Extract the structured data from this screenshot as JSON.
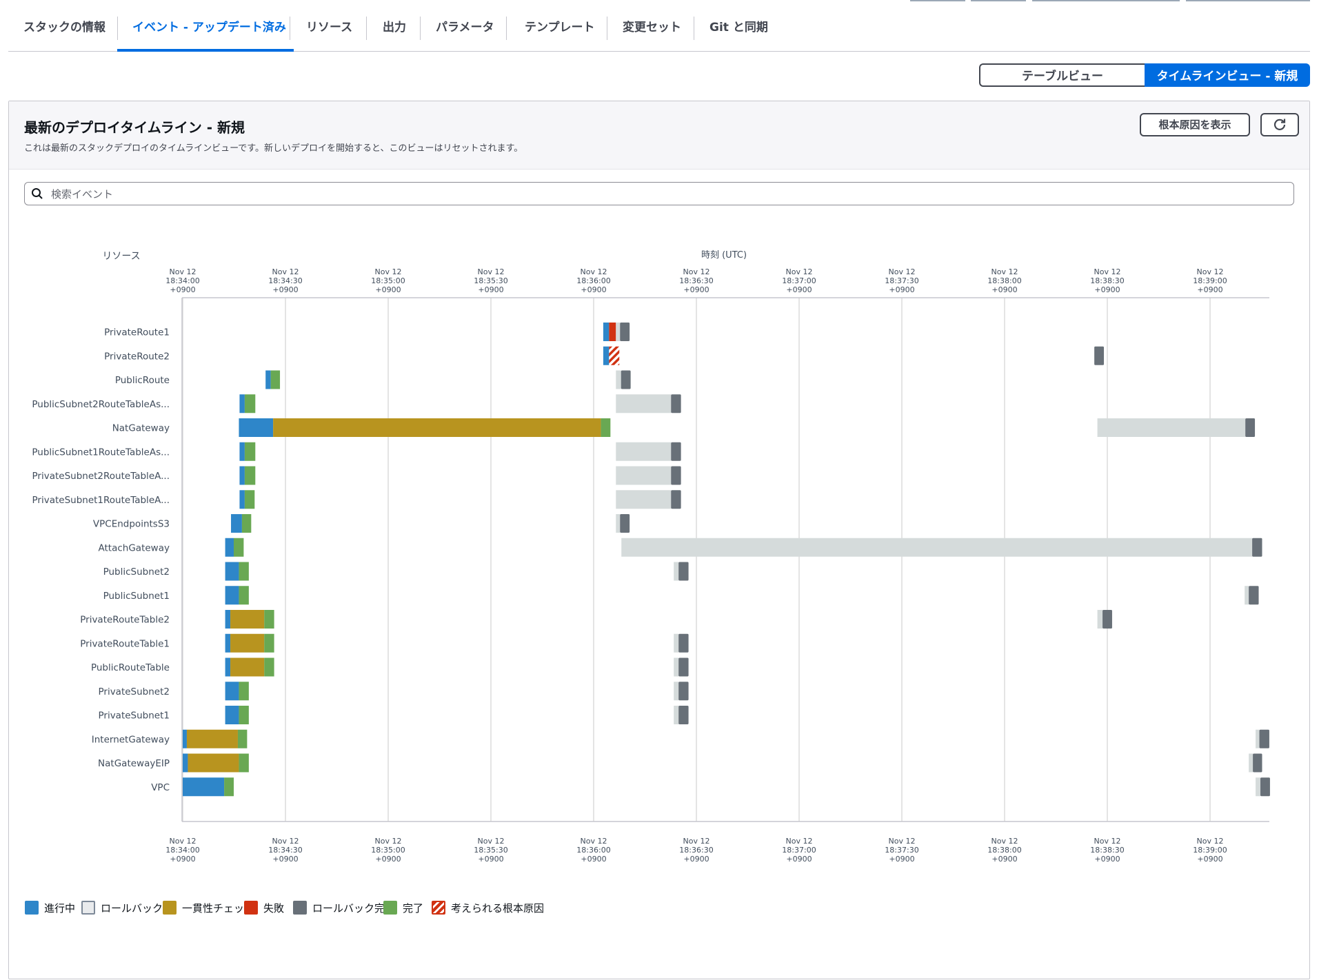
{
  "tabs": [
    {
      "label": "スタックの情報",
      "active": false
    },
    {
      "label": "イベント - アップデート済み",
      "active": true
    },
    {
      "label": "リソース",
      "active": false
    },
    {
      "label": "出力",
      "active": false
    },
    {
      "label": "パラメータ",
      "active": false
    },
    {
      "label": "テンプレート",
      "active": false
    },
    {
      "label": "変更セット",
      "active": false
    },
    {
      "label": "Git と同期",
      "active": false
    }
  ],
  "view_toggle": {
    "table": "テーブルビュー",
    "timeline": "タイムラインビュー - 新規",
    "selected": "timeline"
  },
  "panel": {
    "title": "最新のデプロイタイムライン - 新規",
    "description": "これは最新のスタックデプロイのタイムラインビューです。新しいデプロイを開始すると、このビューはリセットされます。",
    "root_cause_button": "根本原因を表示",
    "refresh_icon": "refresh-icon"
  },
  "search": {
    "placeholder": "検索イベント",
    "value": "",
    "icon": "search-icon"
  },
  "chart_data": {
    "type": "timeline",
    "y_axis_title": "リソース",
    "x_axis_title": "時刻 (UTC)",
    "x_ticks": [
      {
        "date": "Nov 12",
        "time": "18:34:00",
        "tz": "+0900",
        "sec": 0
      },
      {
        "date": "Nov 12",
        "time": "18:34:30",
        "tz": "+0900",
        "sec": 30
      },
      {
        "date": "Nov 12",
        "time": "18:35:00",
        "tz": "+0900",
        "sec": 60
      },
      {
        "date": "Nov 12",
        "time": "18:35:30",
        "tz": "+0900",
        "sec": 90
      },
      {
        "date": "Nov 12",
        "time": "18:36:00",
        "tz": "+0900",
        "sec": 120
      },
      {
        "date": "Nov 12",
        "time": "18:36:30",
        "tz": "+0900",
        "sec": 150
      },
      {
        "date": "Nov 12",
        "time": "18:37:00",
        "tz": "+0900",
        "sec": 180
      },
      {
        "date": "Nov 12",
        "time": "18:37:30",
        "tz": "+0900",
        "sec": 210
      },
      {
        "date": "Nov 12",
        "time": "18:38:00",
        "tz": "+0900",
        "sec": 240
      },
      {
        "date": "Nov 12",
        "time": "18:38:30",
        "tz": "+0900",
        "sec": 270
      },
      {
        "date": "Nov 12",
        "time": "18:39:00",
        "tz": "+0900",
        "sec": 300
      }
    ],
    "x_range_seconds": [
      0,
      317
    ],
    "legend": [
      {
        "key": "in_progress",
        "label": "進行中",
        "color": "#2e86c9"
      },
      {
        "key": "rollback",
        "label": "ロールバック",
        "color": "#d5dbdb"
      },
      {
        "key": "consistency",
        "label": "一貫性チェック",
        "color": "#b8941f"
      },
      {
        "key": "failed",
        "label": "失敗",
        "color": "#d13212"
      },
      {
        "key": "rollback_complete",
        "label": "ロールバック完了",
        "color": "#687078"
      },
      {
        "key": "complete",
        "label": "完了",
        "color": "#69a853"
      },
      {
        "key": "root_cause",
        "label": "考えられる根本原因",
        "color": "#d13212"
      }
    ],
    "resources": [
      {
        "name": "PrivateRoute1",
        "segments": [
          {
            "status": "in_progress",
            "start": 122.8,
            "end": 124.5
          },
          {
            "status": "failed",
            "start": 124.5,
            "end": 126.5
          },
          {
            "status": "rollback",
            "start": 126.5,
            "end": 127.7
          },
          {
            "status": "rollback_complete",
            "start": 127.7,
            "end": 130.5
          }
        ]
      },
      {
        "name": "PrivateRoute2",
        "segments": [
          {
            "status": "in_progress",
            "start": 122.8,
            "end": 124.5
          },
          {
            "status": "root_cause",
            "start": 124.5,
            "end": 127.5
          },
          {
            "status": "rollback_complete",
            "start": 266.2,
            "end": 269
          }
        ]
      },
      {
        "name": "PublicRoute",
        "segments": [
          {
            "status": "in_progress",
            "start": 24.2,
            "end": 25.7
          },
          {
            "status": "complete",
            "start": 25.7,
            "end": 28.4
          },
          {
            "status": "rollback",
            "start": 126.5,
            "end": 128
          },
          {
            "status": "rollback_complete",
            "start": 128,
            "end": 130.8
          }
        ]
      },
      {
        "name": "PublicSubnet2RouteTableAs...",
        "segments": [
          {
            "status": "in_progress",
            "start": 16.6,
            "end": 18.1
          },
          {
            "status": "complete",
            "start": 18.1,
            "end": 21.2
          },
          {
            "status": "rollback",
            "start": 126.5,
            "end": 142.6
          },
          {
            "status": "rollback_complete",
            "start": 142.6,
            "end": 145.5
          }
        ]
      },
      {
        "name": "NatGateway",
        "segments": [
          {
            "status": "in_progress",
            "start": 16.4,
            "end": 26.4
          },
          {
            "status": "consistency",
            "start": 26.4,
            "end": 122.1
          },
          {
            "status": "complete",
            "start": 122.1,
            "end": 124.9
          },
          {
            "status": "rollback",
            "start": 267.1,
            "end": 310.3
          },
          {
            "status": "rollback_complete",
            "start": 310.3,
            "end": 313.1
          }
        ]
      },
      {
        "name": "PublicSubnet1RouteTableAs...",
        "segments": [
          {
            "status": "in_progress",
            "start": 16.6,
            "end": 18.1
          },
          {
            "status": "complete",
            "start": 18.1,
            "end": 21.2
          },
          {
            "status": "rollback",
            "start": 126.5,
            "end": 142.6
          },
          {
            "status": "rollback_complete",
            "start": 142.6,
            "end": 145.5
          }
        ]
      },
      {
        "name": "PrivateSubnet2RouteTableA...",
        "segments": [
          {
            "status": "in_progress",
            "start": 16.6,
            "end": 18.1
          },
          {
            "status": "complete",
            "start": 18.1,
            "end": 21.2
          },
          {
            "status": "rollback",
            "start": 126.5,
            "end": 142.6
          },
          {
            "status": "rollback_complete",
            "start": 142.6,
            "end": 145.5
          }
        ]
      },
      {
        "name": "PrivateSubnet1RouteTableA...",
        "segments": [
          {
            "status": "in_progress",
            "start": 16.6,
            "end": 18.1
          },
          {
            "status": "complete",
            "start": 18.1,
            "end": 21.0
          },
          {
            "status": "rollback",
            "start": 126.5,
            "end": 142.6
          },
          {
            "status": "rollback_complete",
            "start": 142.6,
            "end": 145.5
          }
        ]
      },
      {
        "name": "VPCEndpointsS3",
        "segments": [
          {
            "status": "in_progress",
            "start": 14.1,
            "end": 17.3
          },
          {
            "status": "complete",
            "start": 17.3,
            "end": 20.0
          },
          {
            "status": "rollback",
            "start": 126.5,
            "end": 127.7
          },
          {
            "status": "rollback_complete",
            "start": 127.7,
            "end": 130.5
          }
        ]
      },
      {
        "name": "AttachGateway",
        "segments": [
          {
            "status": "in_progress",
            "start": 12.4,
            "end": 14.9
          },
          {
            "status": "complete",
            "start": 14.9,
            "end": 17.8
          },
          {
            "status": "rollback",
            "start": 128.1,
            "end": 312.3
          },
          {
            "status": "rollback_complete",
            "start": 312.3,
            "end": 315.2
          }
        ]
      },
      {
        "name": "PublicSubnet2",
        "segments": [
          {
            "status": "in_progress",
            "start": 12.4,
            "end": 16.4
          },
          {
            "status": "complete",
            "start": 16.4,
            "end": 19.3
          },
          {
            "status": "rollback",
            "start": 143.4,
            "end": 144.8
          },
          {
            "status": "rollback_complete",
            "start": 144.8,
            "end": 147.7
          }
        ]
      },
      {
        "name": "PublicSubnet1",
        "segments": [
          {
            "status": "in_progress",
            "start": 12.4,
            "end": 16.4
          },
          {
            "status": "complete",
            "start": 16.4,
            "end": 19.3
          },
          {
            "status": "rollback",
            "start": 310.1,
            "end": 311.3
          },
          {
            "status": "rollback_complete",
            "start": 311.3,
            "end": 314.2
          }
        ]
      },
      {
        "name": "PrivateRouteTable2",
        "segments": [
          {
            "status": "in_progress",
            "start": 12.4,
            "end": 13.9
          },
          {
            "status": "consistency",
            "start": 13.9,
            "end": 23.8
          },
          {
            "status": "complete",
            "start": 23.8,
            "end": 26.7
          },
          {
            "status": "rollback",
            "start": 267.1,
            "end": 268.6
          },
          {
            "status": "rollback_complete",
            "start": 268.6,
            "end": 271.4
          }
        ]
      },
      {
        "name": "PrivateRouteTable1",
        "segments": [
          {
            "status": "in_progress",
            "start": 12.4,
            "end": 13.9
          },
          {
            "status": "consistency",
            "start": 13.9,
            "end": 23.8
          },
          {
            "status": "complete",
            "start": 23.8,
            "end": 26.7
          },
          {
            "status": "rollback",
            "start": 143.4,
            "end": 144.8
          },
          {
            "status": "rollback_complete",
            "start": 144.8,
            "end": 147.7
          }
        ]
      },
      {
        "name": "PublicRouteTable",
        "segments": [
          {
            "status": "in_progress",
            "start": 12.4,
            "end": 13.9
          },
          {
            "status": "consistency",
            "start": 13.9,
            "end": 23.8
          },
          {
            "status": "complete",
            "start": 23.8,
            "end": 26.7
          },
          {
            "status": "rollback",
            "start": 143.4,
            "end": 144.8
          },
          {
            "status": "rollback_complete",
            "start": 144.8,
            "end": 147.7
          }
        ]
      },
      {
        "name": "PrivateSubnet2",
        "segments": [
          {
            "status": "in_progress",
            "start": 12.4,
            "end": 16.4
          },
          {
            "status": "complete",
            "start": 16.4,
            "end": 19.3
          },
          {
            "status": "rollback",
            "start": 143.4,
            "end": 144.8
          },
          {
            "status": "rollback_complete",
            "start": 144.8,
            "end": 147.7
          }
        ]
      },
      {
        "name": "PrivateSubnet1",
        "segments": [
          {
            "status": "in_progress",
            "start": 12.4,
            "end": 16.4
          },
          {
            "status": "complete",
            "start": 16.4,
            "end": 19.3
          },
          {
            "status": "rollback",
            "start": 143.4,
            "end": 144.8
          },
          {
            "status": "rollback_complete",
            "start": 144.8,
            "end": 147.7
          }
        ]
      },
      {
        "name": "InternetGateway",
        "segments": [
          {
            "status": "in_progress",
            "start": 0,
            "end": 1.2
          },
          {
            "status": "consistency",
            "start": 1.2,
            "end": 16.1
          },
          {
            "status": "complete",
            "start": 16.1,
            "end": 18.8
          },
          {
            "status": "rollback",
            "start": 313.3,
            "end": 314.4
          },
          {
            "status": "rollback_complete",
            "start": 314.4,
            "end": 317.3
          }
        ]
      },
      {
        "name": "NatGatewayEIP",
        "segments": [
          {
            "status": "in_progress",
            "start": 0,
            "end": 1.5
          },
          {
            "status": "consistency",
            "start": 1.5,
            "end": 16.4
          },
          {
            "status": "complete",
            "start": 16.4,
            "end": 19.3
          },
          {
            "status": "rollback",
            "start": 311.3,
            "end": 312.5
          },
          {
            "status": "rollback_complete",
            "start": 312.5,
            "end": 315.2
          }
        ]
      },
      {
        "name": "VPC",
        "segments": [
          {
            "status": "in_progress",
            "start": 0,
            "end": 12.1
          },
          {
            "status": "complete",
            "start": 12.1,
            "end": 14.9
          },
          {
            "status": "rollback",
            "start": 313.3,
            "end": 314.7
          },
          {
            "status": "rollback_complete",
            "start": 314.7,
            "end": 317.5
          }
        ]
      }
    ]
  }
}
